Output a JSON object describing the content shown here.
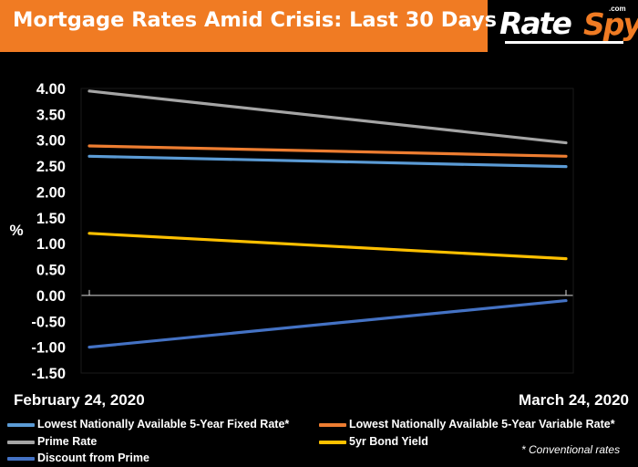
{
  "header": {
    "title": "Mortgage Rates Amid Crisis: Last 30 Days",
    "logo_part1": "Rate",
    "logo_part2": "Spy",
    "logo_dotcom": ".com"
  },
  "footnote": "* Conventional rates",
  "colors": {
    "header_bar": "#f07b23",
    "background": "#000000",
    "text": "#ffffff",
    "axis": "#d9d9d9"
  },
  "chart_data": {
    "type": "line",
    "title": "Mortgage Rates Amid Crisis: Last 30 Days",
    "xlabel": "",
    "ylabel": "%",
    "x": [
      "February 24, 2020",
      "March 24, 2020"
    ],
    "ylim": [
      -1.5,
      4.0
    ],
    "ytick_step": 0.5,
    "ytick_labels": [
      "4.00",
      "3.50",
      "3.00",
      "2.50",
      "2.00",
      "1.50",
      "1.00",
      "0.50",
      "0.00",
      "-0.50",
      "-1.00",
      "-1.50"
    ],
    "grid": false,
    "legend_position": "bottom",
    "series": [
      {
        "name": "Lowest Nationally Available 5-Year Fixed Rate*",
        "color": "#5b9bd5",
        "values": [
          2.69,
          2.49
        ]
      },
      {
        "name": "Lowest Nationally Available 5-Year Variable Rate*",
        "color": "#ed7d31",
        "values": [
          2.89,
          2.69
        ]
      },
      {
        "name": "Prime Rate",
        "color": "#a5a5a5",
        "values": [
          3.95,
          2.95
        ]
      },
      {
        "name": "5yr Bond Yield",
        "color": "#ffc000",
        "values": [
          1.2,
          0.71
        ]
      },
      {
        "name": "Discount from Prime",
        "color": "#4472c4",
        "values": [
          -1.0,
          -0.1
        ]
      }
    ]
  }
}
